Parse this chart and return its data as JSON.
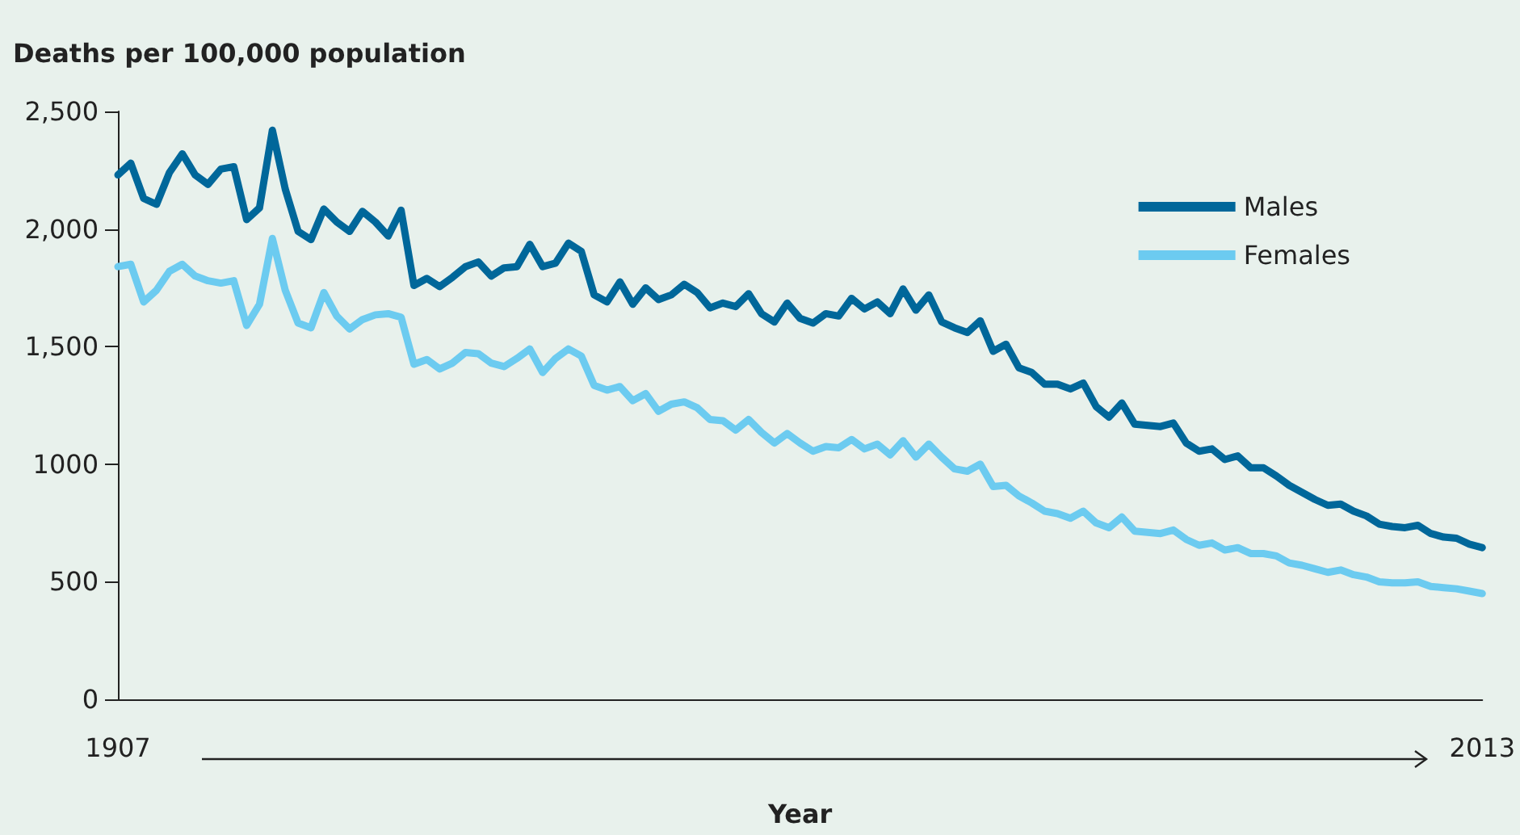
{
  "chart_data": {
    "type": "line",
    "ylabel": "Deaths per 100,000 population",
    "xlabel": "Year",
    "x": [
      1907,
      1908,
      1909,
      1910,
      1911,
      1912,
      1913,
      1914,
      1915,
      1916,
      1917,
      1918,
      1919,
      1920,
      1921,
      1922,
      1923,
      1924,
      1925,
      1926,
      1927,
      1928,
      1929,
      1930,
      1931,
      1932,
      1933,
      1934,
      1935,
      1936,
      1937,
      1938,
      1939,
      1940,
      1941,
      1942,
      1943,
      1944,
      1945,
      1946,
      1947,
      1948,
      1949,
      1950,
      1951,
      1952,
      1953,
      1954,
      1955,
      1956,
      1957,
      1958,
      1959,
      1960,
      1961,
      1962,
      1963,
      1964,
      1965,
      1966,
      1967,
      1968,
      1969,
      1970,
      1971,
      1972,
      1973,
      1974,
      1975,
      1976,
      1977,
      1978,
      1979,
      1980,
      1981,
      1982,
      1983,
      1984,
      1985,
      1986,
      1987,
      1988,
      1989,
      1990,
      1991,
      1992,
      1993,
      1994,
      1995,
      1996,
      1997,
      1998,
      1999,
      2000,
      2001,
      2002,
      2003,
      2004,
      2005,
      2006,
      2007,
      2008,
      2009,
      2010,
      2011,
      2012,
      2013
    ],
    "series": [
      {
        "name": "Males",
        "color": "#00679a",
        "values": [
          2230,
          2280,
          2130,
          2105,
          2240,
          2320,
          2230,
          2190,
          2255,
          2265,
          2040,
          2090,
          2420,
          2170,
          1990,
          1955,
          2085,
          2030,
          1990,
          2075,
          2030,
          1970,
          2080,
          1760,
          1790,
          1755,
          1795,
          1840,
          1860,
          1800,
          1835,
          1840,
          1935,
          1840,
          1855,
          1940,
          1905,
          1720,
          1690,
          1775,
          1680,
          1750,
          1700,
          1720,
          1765,
          1730,
          1665,
          1685,
          1670,
          1725,
          1640,
          1605,
          1685,
          1620,
          1600,
          1640,
          1630,
          1705,
          1660,
          1690,
          1640,
          1745,
          1655,
          1720,
          1605,
          1580,
          1560,
          1610,
          1480,
          1510,
          1410,
          1390,
          1340,
          1340,
          1320,
          1345,
          1245,
          1200,
          1260,
          1170,
          1165,
          1160,
          1175,
          1090,
          1055,
          1065,
          1020,
          1035,
          985,
          985,
          950,
          910,
          880,
          850,
          825,
          830,
          800,
          780,
          745,
          735,
          730,
          740,
          705,
          690,
          685,
          660,
          645
        ]
      },
      {
        "name": "Females",
        "color": "#6ccbf0",
        "values": [
          1840,
          1850,
          1690,
          1740,
          1820,
          1850,
          1800,
          1780,
          1770,
          1780,
          1590,
          1680,
          1960,
          1740,
          1600,
          1580,
          1730,
          1630,
          1575,
          1615,
          1635,
          1640,
          1625,
          1425,
          1445,
          1405,
          1430,
          1475,
          1470,
          1430,
          1415,
          1450,
          1490,
          1390,
          1450,
          1490,
          1460,
          1335,
          1315,
          1330,
          1270,
          1300,
          1225,
          1255,
          1265,
          1240,
          1190,
          1185,
          1145,
          1190,
          1135,
          1090,
          1130,
          1090,
          1055,
          1075,
          1070,
          1105,
          1065,
          1085,
          1040,
          1100,
          1030,
          1085,
          1030,
          980,
          970,
          1000,
          905,
          910,
          865,
          835,
          800,
          790,
          770,
          800,
          750,
          730,
          775,
          715,
          710,
          705,
          720,
          680,
          655,
          665,
          635,
          645,
          620,
          620,
          610,
          580,
          570,
          555,
          540,
          550,
          530,
          520,
          500,
          495,
          495,
          500,
          480,
          475,
          470,
          460,
          450
        ]
      }
    ],
    "xlim": [
      1907,
      2013
    ],
    "xticks": [
      1907,
      2013
    ],
    "ylim": [
      0,
      2500
    ],
    "yticks": [
      0,
      500,
      1000,
      {
        "value": 1500,
        "label": "1,500"
      },
      {
        "value": 2000,
        "label": "2,000"
      },
      {
        "value": 2500,
        "label": "2,500"
      }
    ],
    "grid": false,
    "legend": "top right",
    "marker": "none",
    "line_style": "solid"
  }
}
